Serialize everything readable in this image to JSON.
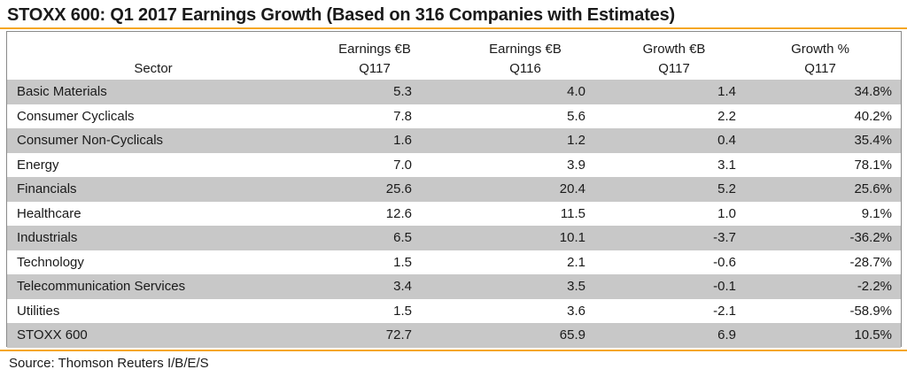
{
  "title": "STOXX 600: Q1 2017 Earnings Growth (Based on 316 Companies with Estimates)",
  "colors": {
    "accent_rule": "#f5a623",
    "shaded_row": "#c8c8c8",
    "border": "#8a8a8a"
  },
  "table": {
    "headers": {
      "sector": "Sector",
      "earnings_q117_line1": "Earnings €B",
      "earnings_q117_line2": "Q117",
      "earnings_q116_line1": "Earnings €B",
      "earnings_q116_line2": "Q116",
      "growth_eur_line1": "Growth €B",
      "growth_eur_line2": "Q117",
      "growth_pct_line1": "Growth %",
      "growth_pct_line2": "Q117"
    },
    "rows": [
      {
        "sector": "Basic Materials",
        "earnings_q117": "5.3",
        "earnings_q116": "4.0",
        "growth_eur": "1.4",
        "growth_pct": "34.8%"
      },
      {
        "sector": "Consumer Cyclicals",
        "earnings_q117": "7.8",
        "earnings_q116": "5.6",
        "growth_eur": "2.2",
        "growth_pct": "40.2%"
      },
      {
        "sector": "Consumer Non-Cyclicals",
        "earnings_q117": "1.6",
        "earnings_q116": "1.2",
        "growth_eur": "0.4",
        "growth_pct": "35.4%"
      },
      {
        "sector": "Energy",
        "earnings_q117": "7.0",
        "earnings_q116": "3.9",
        "growth_eur": "3.1",
        "growth_pct": "78.1%"
      },
      {
        "sector": "Financials",
        "earnings_q117": "25.6",
        "earnings_q116": "20.4",
        "growth_eur": "5.2",
        "growth_pct": "25.6%"
      },
      {
        "sector": "Healthcare",
        "earnings_q117": "12.6",
        "earnings_q116": "11.5",
        "growth_eur": "1.0",
        "growth_pct": "9.1%"
      },
      {
        "sector": "Industrials",
        "earnings_q117": "6.5",
        "earnings_q116": "10.1",
        "growth_eur": "-3.7",
        "growth_pct": "-36.2%"
      },
      {
        "sector": "Technology",
        "earnings_q117": "1.5",
        "earnings_q116": "2.1",
        "growth_eur": "-0.6",
        "growth_pct": "-28.7%"
      },
      {
        "sector": "Telecommunication Services",
        "earnings_q117": "3.4",
        "earnings_q116": "3.5",
        "growth_eur": "-0.1",
        "growth_pct": "-2.2%"
      },
      {
        "sector": "Utilities",
        "earnings_q117": "1.5",
        "earnings_q116": "3.6",
        "growth_eur": "-2.1",
        "growth_pct": "-58.9%"
      },
      {
        "sector": "STOXX 600",
        "earnings_q117": "72.7",
        "earnings_q116": "65.9",
        "growth_eur": "6.9",
        "growth_pct": "10.5%"
      }
    ]
  },
  "source": "Source: Thomson Reuters I/B/E/S"
}
